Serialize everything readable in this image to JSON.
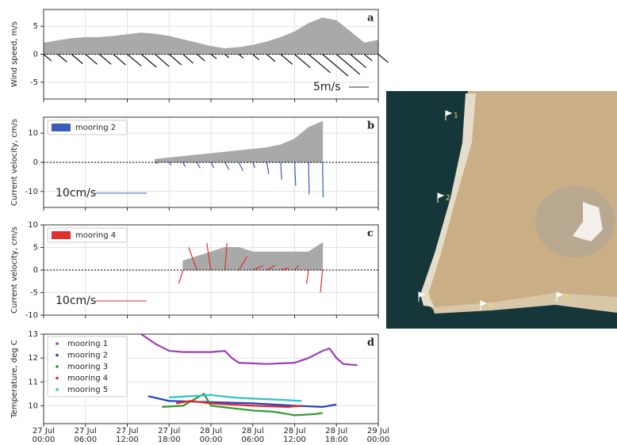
{
  "chart_data": [
    {
      "type": "stick",
      "panel": "a",
      "ylabel": "Wind speed, m/s",
      "xlim": [
        0,
        48
      ],
      "xticks": [
        0,
        6,
        12,
        18,
        24,
        30,
        36,
        42,
        48
      ],
      "ylim": [
        -8,
        8
      ],
      "yticks": [
        -5,
        0,
        5
      ],
      "grid": true,
      "annotation": "5m/s",
      "series": [
        {
          "color": "#111111",
          "envelope_color": "#a9a9a9",
          "x": [
            0,
            2,
            4,
            6,
            8,
            10,
            12,
            14,
            16,
            18,
            20,
            22,
            24,
            26,
            28,
            30,
            32,
            34,
            36,
            38,
            40,
            42,
            44,
            46,
            48
          ],
          "speed": [
            2,
            2.4,
            2.8,
            3,
            3,
            3.2,
            3.5,
            3.8,
            3.6,
            3.2,
            2.6,
            2,
            1.4,
            1,
            1.2,
            1.6,
            2.2,
            3,
            4,
            5.5,
            6.5,
            6,
            4,
            2,
            2.5
          ],
          "u": [
            1.4,
            1.7,
            2,
            2.1,
            2.1,
            2.2,
            2.5,
            2.7,
            2.5,
            2.2,
            1.8,
            1.4,
            1,
            0.7,
            0.8,
            1.1,
            1.5,
            2.1,
            2.8,
            3.9,
            4.6,
            4.2,
            2.8,
            1.4,
            1.8
          ],
          "v": [
            -1.2,
            -1.4,
            -1.7,
            -1.8,
            -1.8,
            -1.9,
            -2.1,
            -2.3,
            -2.2,
            -1.9,
            -1.6,
            -1.2,
            -0.8,
            -0.6,
            -0.7,
            -1,
            -1.3,
            -1.8,
            -2.4,
            -3.3,
            -3.9,
            -3.6,
            -2.4,
            -1.2,
            -1.5
          ]
        }
      ]
    },
    {
      "type": "stick",
      "panel": "b",
      "ylabel": "Current velocity, cm/s",
      "xlim": [
        0,
        48
      ],
      "xticks": [
        0,
        6,
        12,
        18,
        24,
        30,
        36,
        42,
        48
      ],
      "ylim": [
        -15.5,
        15.5
      ],
      "yticks": [
        -10,
        0,
        10
      ],
      "grid": true,
      "annotation": "10cm/s",
      "series": [
        {
          "name": "mooring 2",
          "color": "#3b5cb8",
          "envelope_color": "#a9a9a9",
          "x": [
            16,
            18,
            20,
            22,
            24,
            26,
            28,
            30,
            32,
            34,
            36,
            38,
            40
          ],
          "speed": [
            1,
            1.5,
            2,
            2.5,
            3,
            3.5,
            4,
            4.5,
            5,
            6,
            8,
            12,
            14
          ],
          "u": [
            1,
            1,
            1,
            1.5,
            1.5,
            2,
            2,
            1,
            1,
            0.5,
            0.5,
            0.3,
            0.3
          ],
          "v": [
            -0.5,
            -1,
            -1.5,
            -2,
            -2,
            -2.5,
            -3,
            -2,
            -4,
            -6,
            -8,
            -11,
            -12
          ]
        }
      ]
    },
    {
      "type": "stick",
      "panel": "c",
      "ylabel": "Current velocity, cm/s",
      "xlim": [
        0,
        48
      ],
      "xticks": [
        0,
        6,
        12,
        18,
        24,
        30,
        36,
        42,
        48
      ],
      "ylim": [
        -10,
        10
      ],
      "yticks": [
        -10,
        -5,
        0,
        5,
        10
      ],
      "grid": true,
      "annotation": "10cm/s",
      "series": [
        {
          "name": "mooring 4",
          "color": "#e03030",
          "envelope_color": "#a9a9a9",
          "x": [
            20,
            22,
            24,
            26,
            28,
            30,
            32,
            34,
            36,
            38,
            40
          ],
          "speed": [
            2,
            3,
            4,
            5,
            5,
            4,
            4,
            4,
            4,
            4,
            6
          ],
          "u": [
            -1,
            -2,
            -1,
            0.5,
            2,
            2.5,
            2,
            2,
            1,
            -0.5,
            -0.5
          ],
          "v": [
            -3,
            5,
            6,
            6,
            3,
            1,
            1,
            0.5,
            1,
            -3,
            -5
          ]
        }
      ]
    },
    {
      "type": "line",
      "panel": "d",
      "ylabel": "Temperature, deg C",
      "xlim": [
        0,
        48
      ],
      "ylim": [
        9.25,
        13
      ],
      "yticks": [
        10,
        11,
        12,
        13
      ],
      "grid": true,
      "xticks": [
        {
          "value": 0,
          "label": "27 Jul\n00:00"
        },
        {
          "value": 6,
          "label": "27 Jul\n06:00"
        },
        {
          "value": 12,
          "label": "27 Jul\n12:00"
        },
        {
          "value": 18,
          "label": "27 Jul\n18:00"
        },
        {
          "value": 24,
          "label": "28 Jul\n00:00"
        },
        {
          "value": 30,
          "label": "28 Jul\n06:00"
        },
        {
          "value": 36,
          "label": "28 Jul\n12:00"
        },
        {
          "value": 42,
          "label": "28 Jul\n18:00"
        },
        {
          "value": 48,
          "label": "29 Jul\n00:00"
        }
      ],
      "series": [
        {
          "name": "mooring 1",
          "color": "#9b3fb5",
          "x": [
            14,
            16,
            18,
            20,
            24,
            26,
            27,
            28,
            32,
            36,
            38,
            40,
            41,
            42,
            43,
            45
          ],
          "values": [
            13,
            12.6,
            12.3,
            12.25,
            12.25,
            12.3,
            12,
            11.8,
            11.75,
            11.8,
            12,
            12.3,
            12.4,
            12,
            11.75,
            11.7
          ]
        },
        {
          "name": "mooring 2",
          "color": "#2540c0",
          "x": [
            15,
            18,
            24,
            30,
            36,
            40,
            42
          ],
          "values": [
            10.4,
            10.2,
            10.15,
            10.1,
            10,
            9.95,
            10.05
          ]
        },
        {
          "name": "mooring 3",
          "color": "#2a9a2a",
          "x": [
            17,
            20,
            23,
            24,
            27,
            30,
            33,
            36,
            39,
            40
          ],
          "values": [
            9.95,
            10,
            10.5,
            10,
            9.9,
            9.8,
            9.75,
            9.6,
            9.65,
            9.7
          ]
        },
        {
          "name": "mooring 4",
          "color": "#e02828",
          "x": [
            19,
            21,
            24,
            27,
            30,
            35,
            37
          ],
          "values": [
            10.1,
            10.2,
            10.1,
            10.05,
            10,
            9.95,
            10
          ]
        },
        {
          "name": "mooring 5",
          "color": "#2ec4c4",
          "x": [
            18,
            21,
            24,
            27,
            30,
            34,
            37
          ],
          "values": [
            10.35,
            10.4,
            10.45,
            10.35,
            10.3,
            10.25,
            10.2
          ]
        }
      ]
    }
  ],
  "map": {
    "markers": [
      {
        "label": "1"
      },
      {
        "label": "2"
      },
      {
        "label": "3"
      },
      {
        "label": "4"
      },
      {
        "label": "5"
      }
    ]
  }
}
